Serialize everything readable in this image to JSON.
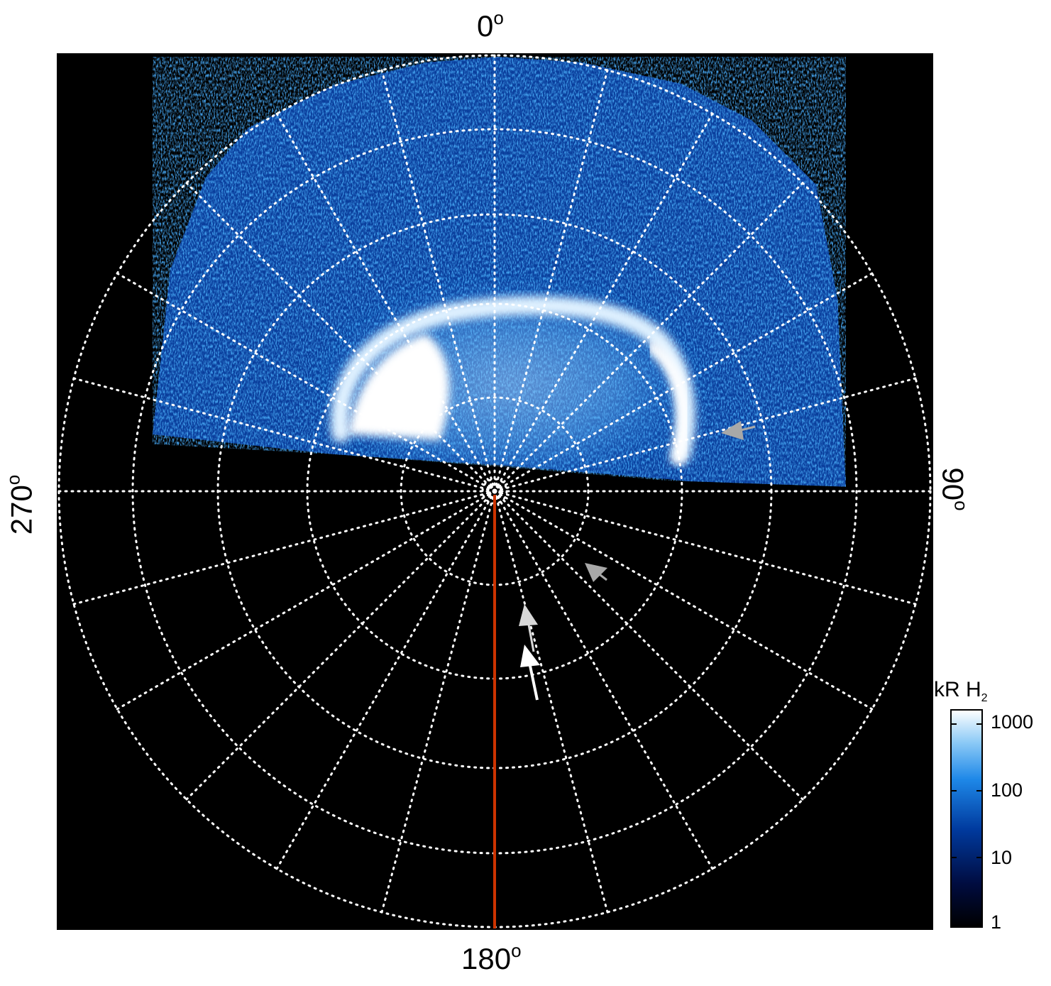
{
  "plot": {
    "labels": {
      "top": "0",
      "bottom": "180",
      "left": "270",
      "right": "90",
      "degree_symbol": "o"
    },
    "colors": {
      "background": "#000000",
      "grid": "#ffffff",
      "meridian_line": "#cc3300",
      "arrow_white": "#ffffff",
      "arrow_gray": "#a8a8a8",
      "arrow_light": "#d8d8d8"
    }
  },
  "colorbar": {
    "title_main": "kR H",
    "title_sub": "2",
    "ticks": [
      "1000",
      "100",
      "10",
      "1"
    ],
    "gradient": [
      "#000000",
      "#000c40",
      "#003a9e",
      "#1e88e8",
      "#8ccaf6",
      "#ffffff"
    ]
  }
}
